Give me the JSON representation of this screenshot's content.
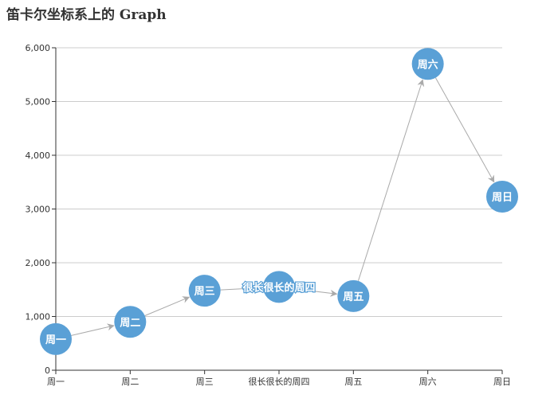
{
  "chart_data": {
    "type": "graph",
    "title": "笛卡尔坐标系上的 Graph",
    "categories": [
      "周一",
      "周二",
      "周三",
      "很长很长的周四",
      "周五",
      "周六",
      "周日"
    ],
    "node_labels": [
      "周一",
      "周二",
      "周三",
      "很长很长的周四",
      "周五",
      "周六",
      "周日"
    ],
    "values": [
      580,
      900,
      1480,
      1550,
      1380,
      5700,
      3230
    ],
    "ylim": [
      0,
      6000
    ],
    "yticks": [
      0,
      1000,
      2000,
      3000,
      4000,
      5000,
      6000
    ],
    "ytick_labels": [
      "0",
      "1,000",
      "2,000",
      "3,000",
      "4,000",
      "5,000",
      "6,000"
    ],
    "edges": [
      [
        0,
        1
      ],
      [
        1,
        2
      ],
      [
        2,
        3
      ],
      [
        3,
        4
      ],
      [
        4,
        5
      ],
      [
        5,
        6
      ]
    ],
    "grid": true,
    "colors": {
      "node": "#5aa0d6",
      "edge": "#aaaaaa",
      "grid": "#cccccc",
      "axis": "#333333"
    }
  }
}
